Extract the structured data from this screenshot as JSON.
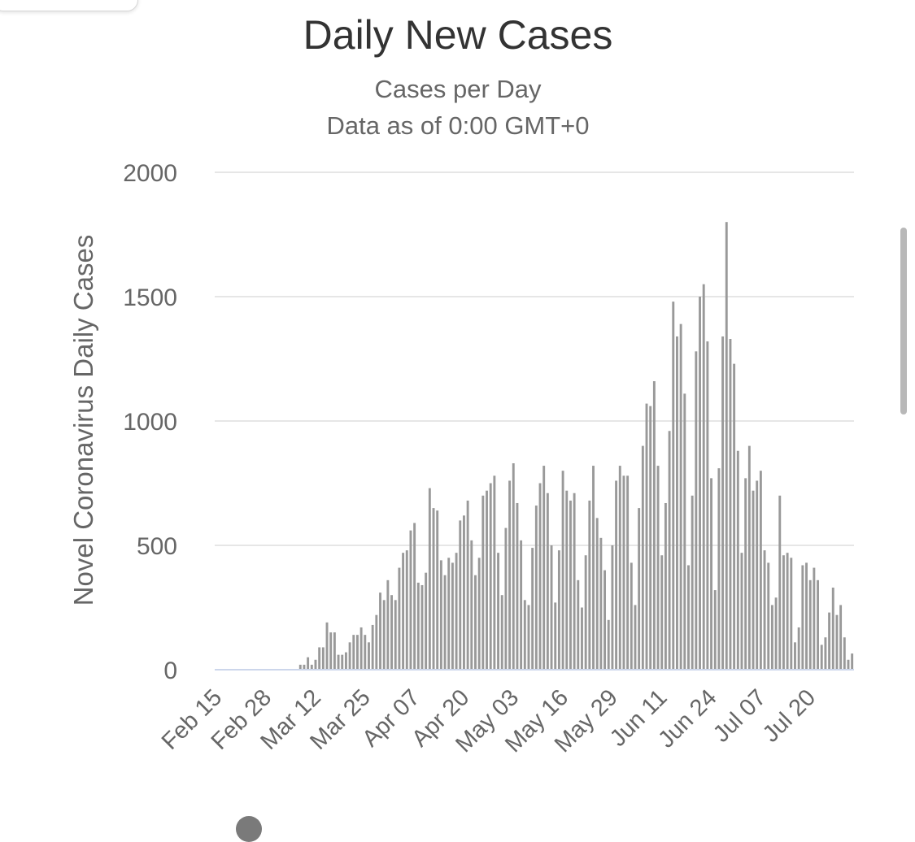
{
  "chart_data": {
    "type": "bar",
    "title": "Daily New Cases",
    "subtitle_lines": [
      "Cases per Day",
      "Data as of 0:00 GMT+0"
    ],
    "ylabel": "Novel Coronavirus Daily Cases",
    "xlabel": "",
    "ylim": [
      0,
      2000
    ],
    "yticks": [
      0,
      500,
      1000,
      1500,
      2000
    ],
    "grid": true,
    "legend": "none",
    "color": "#999999",
    "x_start": "Feb 15",
    "x_tick_labels": [
      "Feb 15",
      "Feb 28",
      "Mar 12",
      "Mar 25",
      "Apr 07",
      "Apr 20",
      "May 03",
      "May 16",
      "May 29",
      "Jun 11",
      "Jun 24",
      "Jul 07",
      "Jul 20"
    ],
    "values": [
      0,
      0,
      0,
      0,
      0,
      0,
      0,
      0,
      0,
      0,
      0,
      0,
      0,
      0,
      0,
      0,
      0,
      0,
      0,
      0,
      0,
      0,
      20,
      20,
      50,
      20,
      40,
      90,
      90,
      190,
      150,
      150,
      60,
      60,
      70,
      110,
      140,
      140,
      170,
      140,
      110,
      180,
      220,
      310,
      280,
      360,
      300,
      280,
      410,
      470,
      480,
      560,
      590,
      350,
      340,
      390,
      730,
      650,
      640,
      440,
      380,
      450,
      430,
      470,
      600,
      620,
      680,
      520,
      380,
      450,
      700,
      720,
      750,
      780,
      470,
      300,
      570,
      760,
      830,
      670,
      520,
      280,
      260,
      490,
      660,
      750,
      820,
      710,
      500,
      270,
      480,
      800,
      720,
      680,
      710,
      360,
      250,
      460,
      680,
      820,
      610,
      530,
      400,
      200,
      500,
      760,
      820,
      780,
      780,
      430,
      260,
      650,
      900,
      1070,
      1060,
      1160,
      820,
      460,
      670,
      960,
      1480,
      1340,
      1390,
      1110,
      420,
      700,
      1280,
      1500,
      1550,
      1320,
      770,
      320,
      810,
      1340,
      1800,
      1330,
      1230,
      880,
      470,
      770,
      900,
      720,
      760,
      800,
      480,
      430,
      260,
      290,
      700,
      460,
      470,
      450,
      110,
      170,
      420,
      430,
      360,
      410,
      360,
      100,
      130,
      230,
      330,
      220,
      260,
      130,
      40,
      65
    ]
  }
}
